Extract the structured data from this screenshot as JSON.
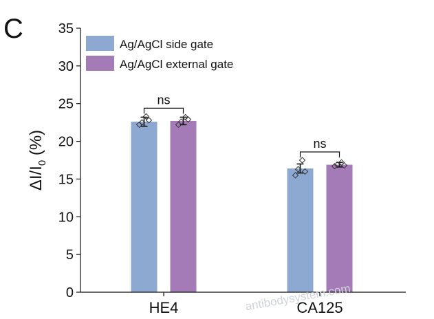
{
  "panel_letter": "C",
  "watermark": "antibodysystem.com",
  "chart_data": {
    "type": "bar",
    "title": "",
    "xlabel": "",
    "ylabel_main": "ΔI/I",
    "ylabel_sub": "0",
    "ylabel_tail": " (%)",
    "ylim": [
      0,
      35
    ],
    "yticks": [
      0,
      5,
      10,
      15,
      20,
      25,
      30,
      35
    ],
    "categories": [
      "HE4",
      "CA125"
    ],
    "legend_position": "top-left",
    "series": [
      {
        "name": "Ag/AgCl side gate",
        "color": "#8ea9d1",
        "values": [
          22.6,
          16.4
        ],
        "errors": [
          0.6,
          0.6
        ],
        "points": [
          [
            22.2,
            22.5,
            23.3,
            22.8
          ],
          [
            15.5,
            16.3,
            17.5,
            16.0
          ]
        ]
      },
      {
        "name": "Ag/AgCl external gate",
        "color": "#a57bb7",
        "values": [
          22.7,
          16.9
        ],
        "errors": [
          0.5,
          0.3
        ],
        "points": [
          [
            22.2,
            22.6,
            23.2,
            22.9
          ],
          [
            16.7,
            16.9,
            17.2,
            16.8
          ]
        ]
      }
    ],
    "annotations": [
      {
        "category": "HE4",
        "label": "ns"
      },
      {
        "category": "CA125",
        "label": "ns"
      }
    ]
  }
}
